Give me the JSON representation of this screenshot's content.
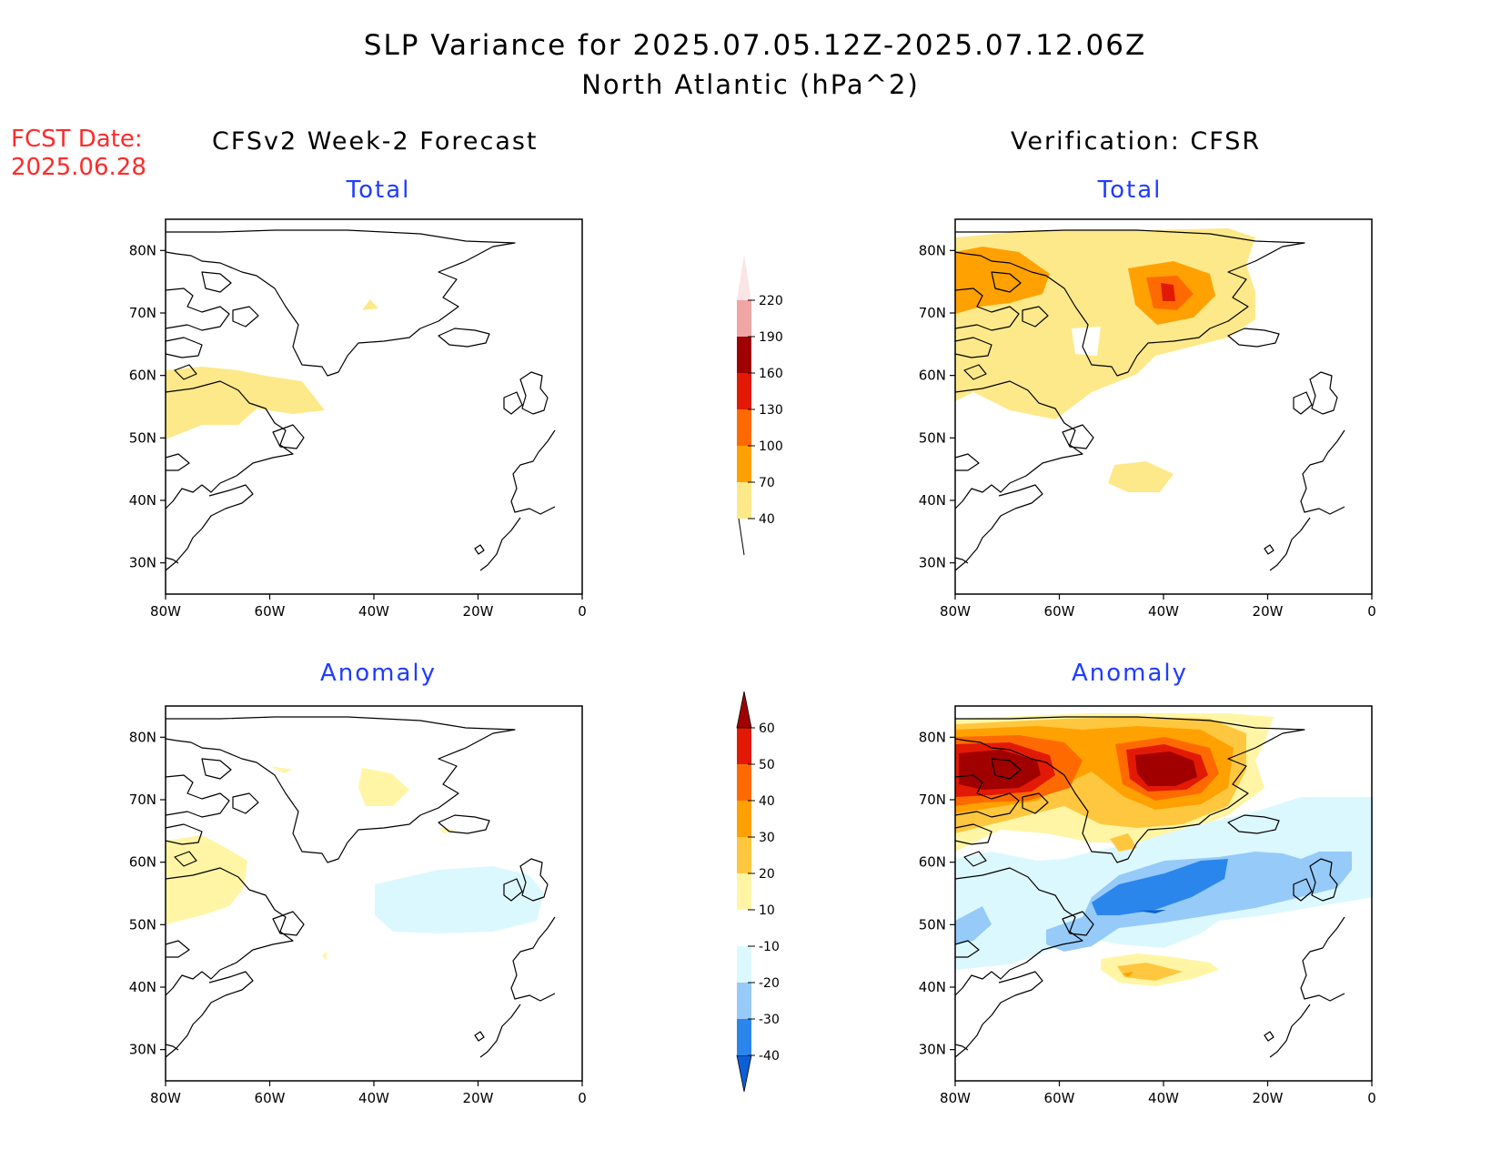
{
  "title": {
    "line1": "SLP Variance for 2025.07.05.12Z-2025.07.12.06Z",
    "line2": "North Atlantic (hPa^2)"
  },
  "forecast_date": {
    "label": "FCST Date:",
    "value": "2025.06.28"
  },
  "columns": {
    "left": "CFSv2 Week-2 Forecast",
    "right": "Verification: CFSR"
  },
  "panels": {
    "forecast_total": {
      "subtitle": "Total"
    },
    "forecast_anomaly": {
      "subtitle": "Anomaly"
    },
    "verif_total": {
      "subtitle": "Total"
    },
    "verif_anomaly": {
      "subtitle": "Anomaly"
    }
  },
  "axes": {
    "lon_labels": [
      "80W",
      "60W",
      "40W",
      "20W",
      "0"
    ],
    "lat_labels": [
      "30N",
      "40N",
      "50N",
      "60N",
      "70N",
      "80N"
    ]
  },
  "colorbars": {
    "total": {
      "levels": [
        "40",
        "70",
        "100",
        "130",
        "160",
        "190",
        "220"
      ],
      "colors": [
        "#fde98a",
        "#ffa100",
        "#ff6a00",
        "#e21a05",
        "#a00000",
        "#f1a5a5",
        "#fbe4e4"
      ]
    },
    "anomaly": {
      "levels": [
        "-40",
        "-30",
        "-20",
        "-10",
        "10",
        "20",
        "30",
        "40",
        "50",
        "60"
      ],
      "colors": [
        "#0c5fd6",
        "#2b86ec",
        "#96caf8",
        "#dcf8ff",
        "#ffffff",
        "#fff5a5",
        "#ffc73f",
        "#ffa100",
        "#ff6a00",
        "#e21a05",
        "#a00000"
      ]
    }
  }
}
